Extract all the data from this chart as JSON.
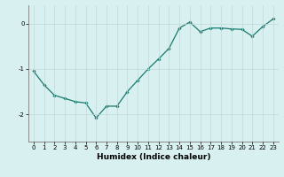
{
  "x": [
    0,
    1,
    2,
    3,
    4,
    5,
    6,
    7,
    8,
    9,
    10,
    11,
    12,
    13,
    14,
    15,
    16,
    17,
    18,
    19,
    20,
    21,
    22,
    23
  ],
  "y": [
    -1.05,
    -1.35,
    -1.58,
    -1.65,
    -1.72,
    -1.75,
    -2.08,
    -1.82,
    -1.82,
    -1.5,
    -1.25,
    -1.0,
    -0.78,
    -0.55,
    -0.1,
    0.03,
    -0.18,
    -0.1,
    -0.1,
    -0.12,
    -0.13,
    -0.28,
    -0.07,
    0.1
  ],
  "title": "",
  "xlabel": "Humidex (Indice chaleur)",
  "ylabel": "",
  "xlim": [
    -0.5,
    23.5
  ],
  "ylim": [
    -2.6,
    0.4
  ],
  "yticks": [
    -2,
    -1,
    0
  ],
  "xticks": [
    0,
    1,
    2,
    3,
    4,
    5,
    6,
    7,
    8,
    9,
    10,
    11,
    12,
    13,
    14,
    15,
    16,
    17,
    18,
    19,
    20,
    21,
    22,
    23
  ],
  "line_color": "#1a7a6e",
  "marker": "D",
  "marker_size": 1.8,
  "bg_color": "#d8f0f0",
  "grid_color": "#c0d8d8",
  "tick_label_fontsize": 5.0,
  "xlabel_fontsize": 6.5,
  "xlabel_fontweight": "bold"
}
